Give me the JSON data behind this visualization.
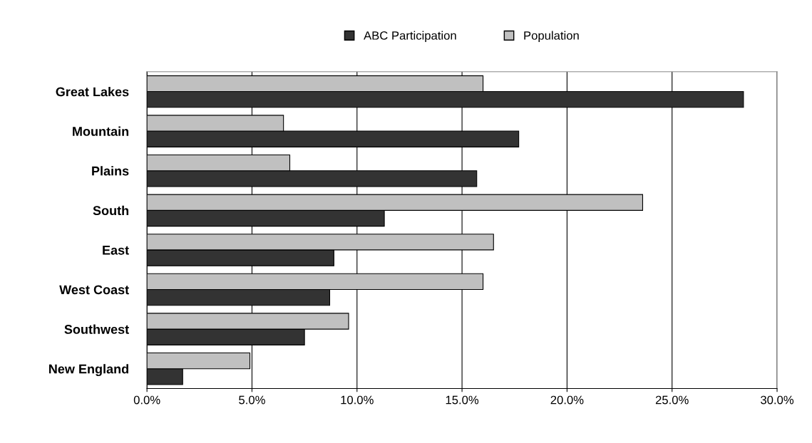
{
  "chart_data": {
    "type": "bar",
    "orientation": "horizontal",
    "categories": [
      "Great Lakes",
      "Mountain",
      "Plains",
      "South",
      "East",
      "West Coast",
      "Southwest",
      "New England"
    ],
    "series": [
      {
        "name": "ABC Participation",
        "color": "#333333",
        "values": [
          28.4,
          17.7,
          15.7,
          11.3,
          8.9,
          8.7,
          7.5,
          1.7
        ]
      },
      {
        "name": "Population",
        "color": "#c0c0c0",
        "values": [
          16.0,
          6.5,
          6.8,
          23.6,
          16.5,
          16.0,
          9.6,
          4.9
        ]
      }
    ],
    "xlim": [
      0,
      30
    ],
    "xticks": [
      {
        "value": 0,
        "label": "0.0%"
      },
      {
        "value": 5,
        "label": "5.0%"
      },
      {
        "value": 10,
        "label": "10.0%"
      },
      {
        "value": 15,
        "label": "15.0%"
      },
      {
        "value": 20,
        "label": "20.0%"
      },
      {
        "value": 25,
        "label": "25.0%"
      },
      {
        "value": 30,
        "label": "30.0%"
      }
    ],
    "grid": "x",
    "legend": "top"
  }
}
